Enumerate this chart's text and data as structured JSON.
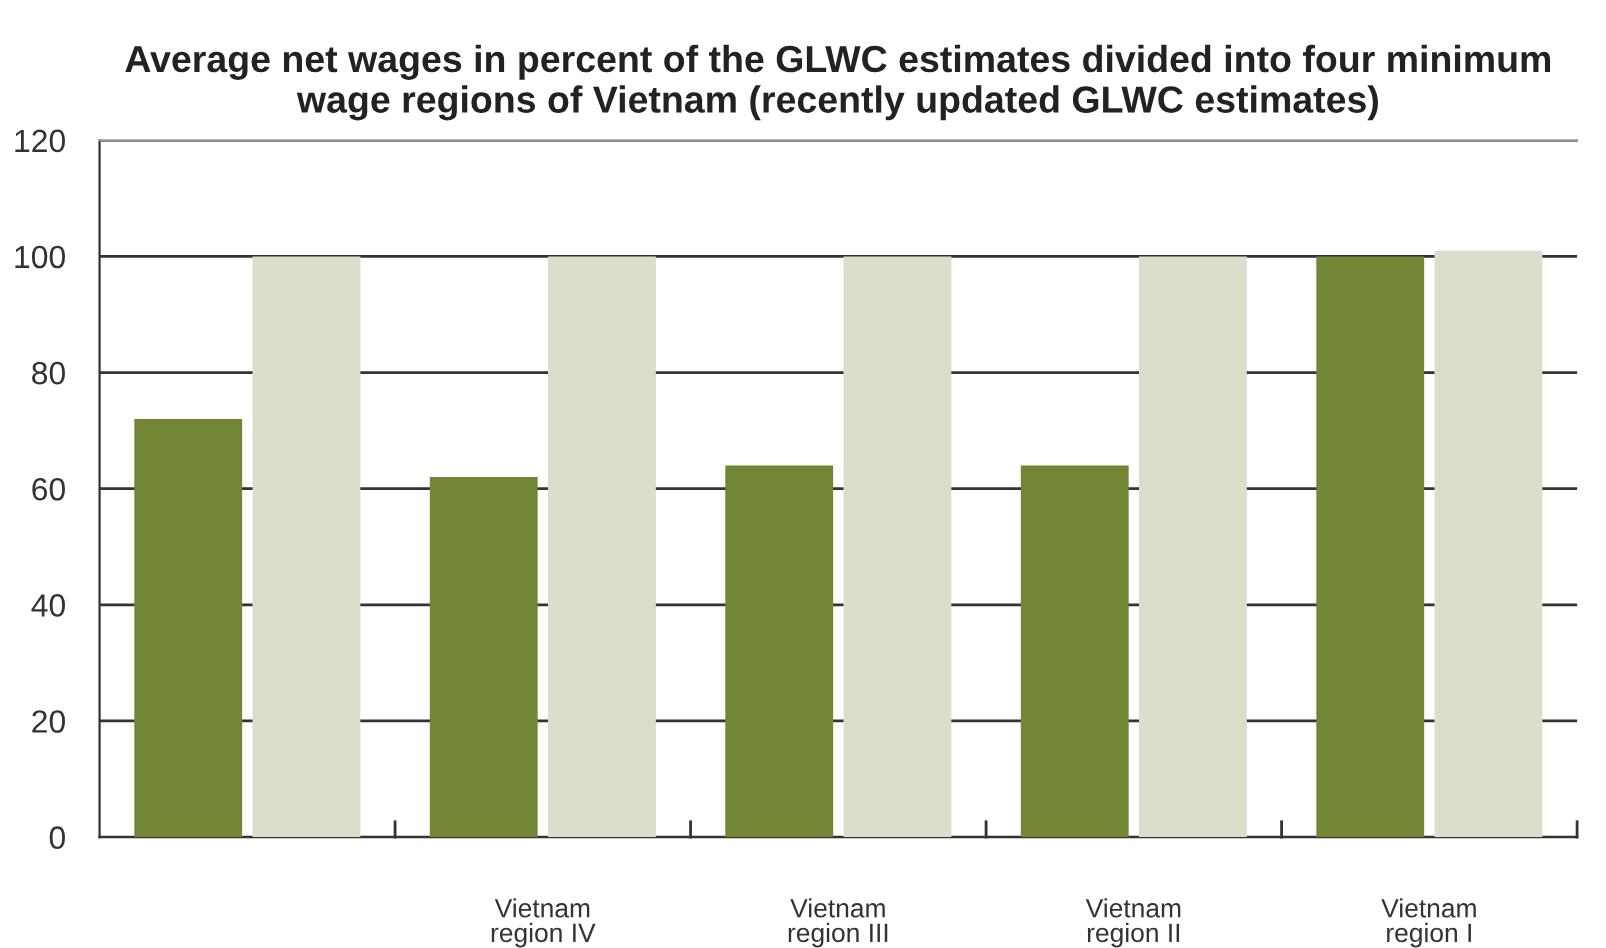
{
  "chart_data": {
    "type": "bar",
    "title": "Average net wages in percent of the GLWC estimates divided into four minimum\nwage regions of Vietnam (recently updated GLWC estimates)",
    "categories": [
      null,
      "Vietnam\nregion IV",
      "Vietnam\nregion III",
      "Vietnam\nregion II",
      "Vietnam\nregion I"
    ],
    "series": [
      {
        "color": "#728636",
        "values": [
          72,
          62,
          64,
          64,
          100
        ]
      },
      {
        "color": "#dbdeca",
        "values": [
          100,
          100,
          100,
          100,
          101
        ]
      }
    ],
    "ylim": [
      0,
      120
    ],
    "yticks": [
      0,
      20,
      40,
      60,
      80,
      100,
      120
    ],
    "grid": "y",
    "legend": false
  }
}
